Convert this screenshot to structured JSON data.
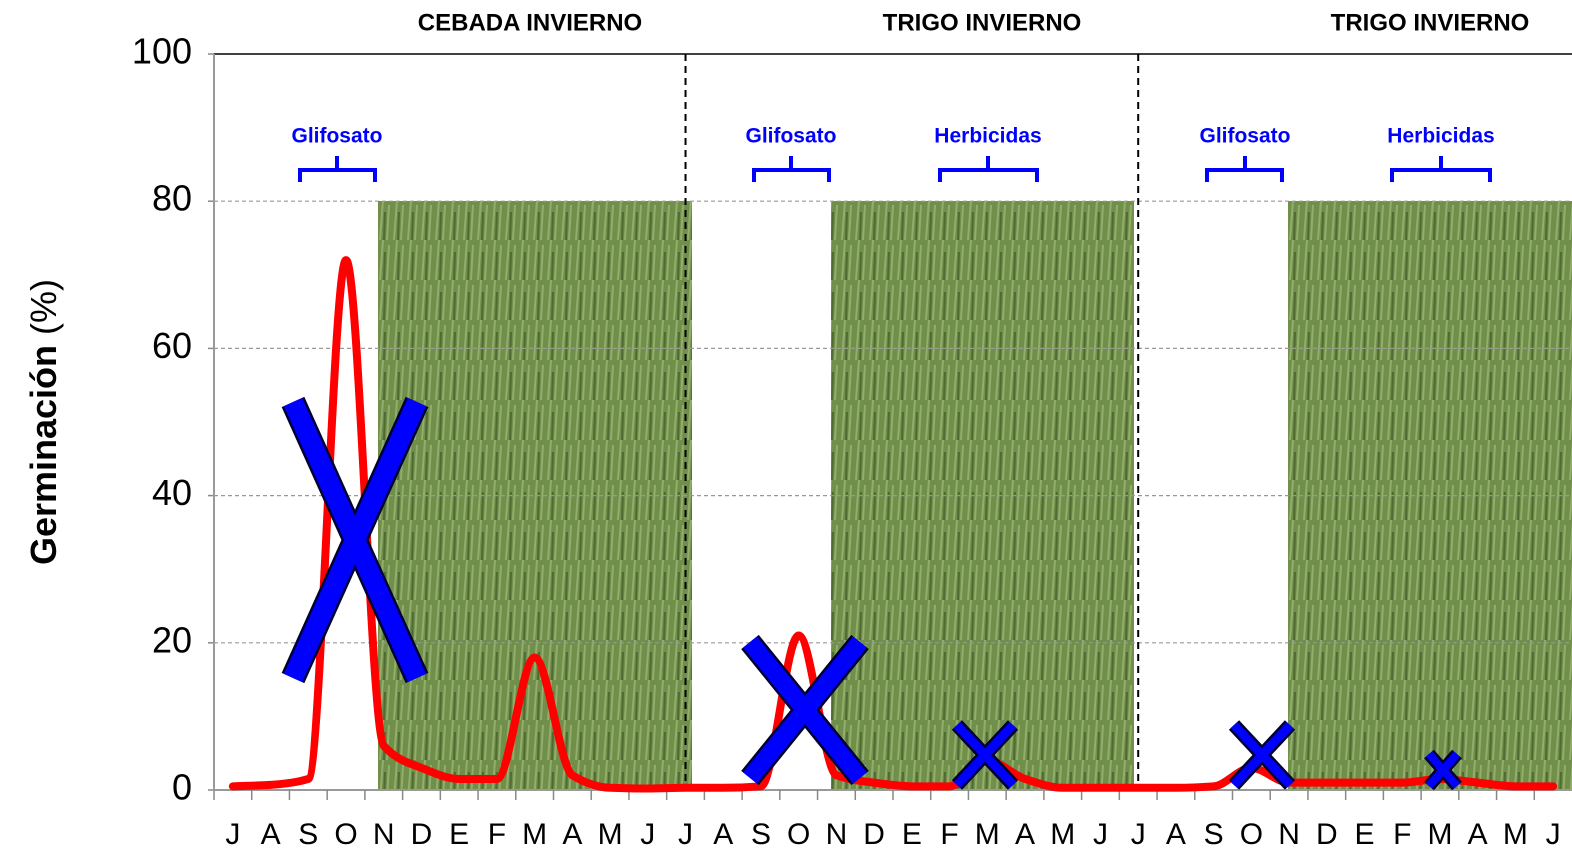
{
  "chart_data": {
    "type": "line",
    "ylabel": "Germinación",
    "ylabel_unit": "(%)",
    "seasons": [
      "CEBADA INVIERNO",
      "TRIGO INVIERNO",
      "TRIGO INVIERNO"
    ],
    "annotations": [
      "Glifosato",
      "Glifosato",
      "Herbicidas",
      "Glifosato",
      "Herbicidas"
    ],
    "categories": [
      "J",
      "A",
      "S",
      "O",
      "N",
      "D",
      "E",
      "F",
      "M",
      "A",
      "M",
      "J",
      "J",
      "A",
      "S",
      "O",
      "N",
      "D",
      "E",
      "F",
      "M",
      "A",
      "M",
      "J",
      "J",
      "A",
      "S",
      "O",
      "N",
      "D",
      "E",
      "F",
      "M",
      "A",
      "M",
      "J"
    ],
    "series": [
      {
        "name": "Germinación",
        "color": "#ff0000",
        "values": [
          0.5,
          0.7,
          1.5,
          72,
          6,
          3,
          1.5,
          1.5,
          18,
          2,
          0.3,
          0.2,
          0.3,
          0.3,
          0.5,
          21,
          2,
          1,
          0.5,
          0.5,
          4,
          1.5,
          0.3,
          0.3,
          0.3,
          0.3,
          0.5,
          3,
          1,
          1,
          1,
          1,
          1.5,
          1,
          0.5,
          0.5
        ]
      }
    ],
    "ylim": [
      0,
      100
    ],
    "yticks": [
      0,
      20,
      40,
      60,
      80,
      100
    ],
    "grid": true
  }
}
